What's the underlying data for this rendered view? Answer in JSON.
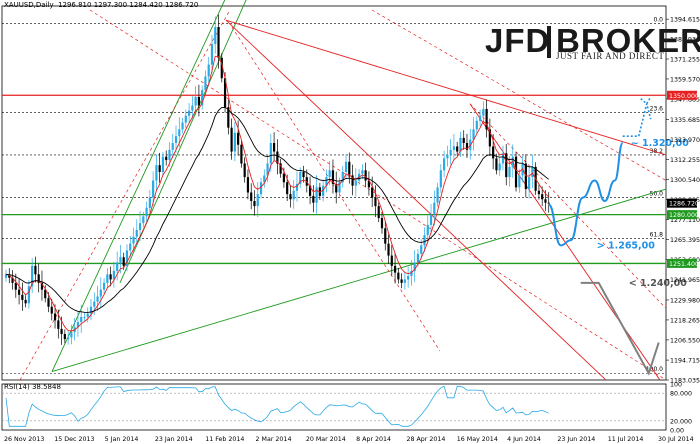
{
  "header": {
    "symbol": "XAUUSD,Daily",
    "ohlc": "1296.810 1297.300 1284.420 1286.720"
  },
  "logo": {
    "brand": "JFD",
    "name": "BROKERS",
    "tagline": "JUST FAIR AND DIRECT"
  },
  "rsi": {
    "label": "RSI(14) 38.5848",
    "levels": [
      "100",
      "80.000",
      "20.000",
      "0.00"
    ]
  },
  "colors": {
    "up_candle": "#29a9e6",
    "down_candle": "#000000",
    "ema_fast": "#e62020",
    "ema_slow": "#000000",
    "red_line": "#e62020",
    "green_line": "#1f9a1f",
    "forecast": "#1e90e6",
    "bear_path": "#808080",
    "annotation": "#1e90e6"
  },
  "chart_data": {
    "type": "candlestick",
    "ylim": [
      1183.035,
      1400.0
    ],
    "y_ticks": [
      "1394.615",
      "1382.930",
      "1371.255",
      "1359.570",
      "1347.885",
      "1335.685",
      "1323.970",
      "1312.255",
      "1300.540",
      "1288.825",
      "1277.110",
      "1265.395",
      "1253.680",
      "1241.965",
      "1229.980",
      "1218.265",
      "1206.550",
      "1194.715",
      "1183.035"
    ],
    "x_labels": [
      "26 Nov 2013",
      "15 Dec 2013",
      "5 Jan 2014",
      "23 Jan 2014",
      "11 Feb 2014",
      "2 Mar 2014",
      "20 Mar 2014",
      "8 Apr 2014",
      "28 Apr 2014",
      "16 May 2014",
      "4 Jun 2014",
      "23 Jun 2014",
      "11 Jul 2014",
      "30 Jul 2014"
    ],
    "price_labels": [
      {
        "label": "1350.000",
        "value": 1350.0
      },
      {
        "label": "1286.720",
        "value": 1286.72
      },
      {
        "label": "1280.000",
        "value": 1280.0
      },
      {
        "label": "1251.400",
        "value": 1251.4
      }
    ],
    "fib_levels": [
      {
        "label": "0.0",
        "value": 1392.0
      },
      {
        "label": "23.6",
        "value": 1340.0
      },
      {
        "label": "38.2",
        "value": 1315.0
      },
      {
        "label": "50.0",
        "value": 1290.0
      },
      {
        "label": "61.8",
        "value": 1266.0
      },
      {
        "label": "100.0",
        "value": 1187.0
      }
    ],
    "annotations": [
      {
        "label": "~ 1.320,00",
        "value": 1320.0
      },
      {
        "label": "> 1.265,00",
        "value": 1265.0
      },
      {
        "label": "< 1.240,00",
        "value": 1240.0
      }
    ],
    "series": [
      {
        "name": "XAUUSD",
        "close": [
          1245,
          1243,
          1240,
          1236,
          1233,
          1230,
          1228,
          1238,
          1250,
          1245,
          1240,
          1236,
          1231,
          1226,
          1222,
          1218,
          1213,
          1210,
          1207,
          1208,
          1211,
          1214,
          1217,
          1220,
          1220,
          1222,
          1226,
          1229,
          1232,
          1236,
          1240,
          1245,
          1242,
          1247,
          1252,
          1255,
          1250,
          1259,
          1263,
          1267,
          1271,
          1275,
          1279,
          1284,
          1290,
          1300,
          1309,
          1305,
          1314,
          1312,
          1318,
          1322,
          1326,
          1330,
          1334,
          1338,
          1341,
          1344,
          1349,
          1344,
          1353,
          1361,
          1368,
          1380,
          1390,
          1372,
          1360,
          1343,
          1331,
          1317,
          1328,
          1321,
          1310,
          1302,
          1293,
          1288,
          1285,
          1292,
          1299,
          1303,
          1310,
          1322,
          1317,
          1310,
          1304,
          1299,
          1292,
          1289,
          1294,
          1298,
          1305,
          1302,
          1297,
          1291,
          1287,
          1296,
          1291,
          1297,
          1302,
          1306,
          1298,
          1293,
          1299,
          1305,
          1311,
          1303,
          1297,
          1300,
          1304,
          1306,
          1300,
          1296,
          1290,
          1285,
          1278,
          1272,
          1263,
          1256,
          1250,
          1246,
          1242,
          1240,
          1242,
          1244,
          1247,
          1252,
          1257,
          1262,
          1268,
          1274,
          1280,
          1287,
          1296,
          1306,
          1313,
          1315,
          1318,
          1320,
          1317,
          1325,
          1322,
          1318,
          1324,
          1330,
          1335,
          1338,
          1342,
          1330,
          1320,
          1313,
          1306,
          1310,
          1316,
          1302,
          1308,
          1314,
          1296,
          1303,
          1310,
          1295,
          1302,
          1308,
          1294,
          1292,
          1289,
          1287,
          1286.72
        ]
      }
    ]
  }
}
